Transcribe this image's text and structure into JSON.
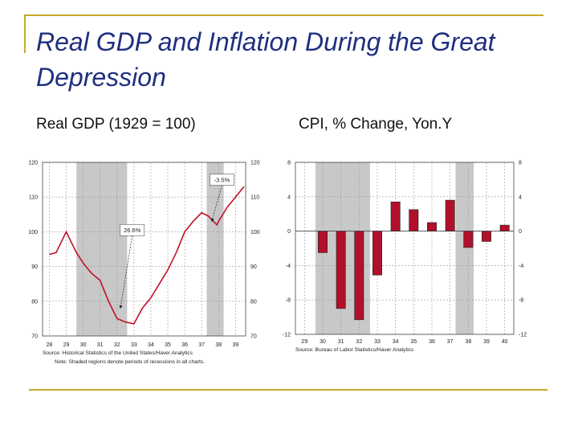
{
  "slide": {
    "title": "Real GDP and Inflation During the Great Depression",
    "accent_color": "#c8a92a",
    "title_color": "#1f2f7f"
  },
  "chart_data": [
    {
      "type": "line",
      "subtitle": "Real GDP (1929 = 100)",
      "x": [
        "28",
        "29",
        "30",
        "31",
        "32",
        "33",
        "34",
        "35",
        "36",
        "37",
        "38",
        "39"
      ],
      "series": [
        {
          "name": "Real GDP",
          "color": "#c0102a",
          "points": [
            [
              28,
              93.5
            ],
            [
              28.4,
              94
            ],
            [
              29,
              100
            ],
            [
              29.6,
              94
            ],
            [
              30,
              91
            ],
            [
              30.5,
              88
            ],
            [
              31,
              86
            ],
            [
              31.5,
              80
            ],
            [
              32,
              75
            ],
            [
              32.5,
              74
            ],
            [
              33,
              73.5
            ],
            [
              33.5,
              78
            ],
            [
              34,
              81
            ],
            [
              34.5,
              85
            ],
            [
              35,
              89
            ],
            [
              35.5,
              94
            ],
            [
              36,
              100
            ],
            [
              36.5,
              103
            ],
            [
              37,
              105.5
            ],
            [
              37.4,
              104.5
            ],
            [
              37.6,
              103.5
            ],
            [
              37.9,
              102
            ],
            [
              38,
              103
            ],
            [
              38.5,
              107
            ],
            [
              39,
              110
            ],
            [
              39.5,
              113
            ]
          ]
        }
      ],
      "ylim": [
        70,
        120
      ],
      "yticks": [
        "70",
        "80",
        "90",
        "100",
        "110",
        "120"
      ],
      "xlim": [
        27.6,
        39.6
      ],
      "recessions": [
        [
          29.6,
          32.6
        ],
        [
          37.3,
          38.3
        ]
      ],
      "annotations": [
        {
          "text": "26.6%",
          "from": [
            32.9,
            100.5
          ],
          "to": [
            32.2,
            78
          ]
        },
        {
          "text": "-3.5%",
          "from": [
            38.2,
            115
          ],
          "to": [
            37.6,
            103
          ]
        }
      ],
      "source": "Source: Historical Statistics of the United States/Haver Analytics",
      "note": "Note: Shaded regions denote periods of recessions in all charts."
    },
    {
      "type": "bar",
      "subtitle": "CPI, % Change, Yon.Y",
      "categories": [
        "29",
        "30",
        "31",
        "32",
        "33",
        "34",
        "35",
        "36",
        "37",
        "38",
        "39",
        "40"
      ],
      "values": [
        0,
        -2.5,
        -9.0,
        -10.3,
        -5.1,
        3.4,
        2.5,
        1.0,
        3.6,
        -1.9,
        -1.2,
        0.7
      ],
      "bar_color": "#b0102a",
      "ylim": [
        -12,
        8
      ],
      "yticks": [
        "-12",
        "-8",
        "-4",
        "0",
        "4",
        "8"
      ],
      "recessions": [
        [
          29.6,
          32.6
        ],
        [
          37.3,
          38.3
        ]
      ],
      "source": "Source: Bureau of Labor Statistics/Haver Analytics"
    }
  ]
}
